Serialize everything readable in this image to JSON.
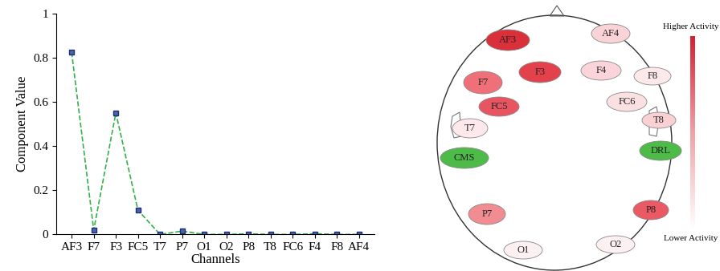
{
  "chart_data": {
    "type": "line",
    "categories": [
      "AF3",
      "F7",
      "F3",
      "FC5",
      "T7",
      "P7",
      "O1",
      "O2",
      "P8",
      "T8",
      "FC6",
      "F4",
      "F8",
      "AF4"
    ],
    "values": [
      0.825,
      0.02,
      0.55,
      0.11,
      0.0,
      0.015,
      0.0,
      0.0,
      0.003,
      0.0,
      0.0,
      0.003,
      0.0,
      0.0
    ],
    "color": "#33b24a",
    "marker": "square",
    "line_style": "dashed",
    "x_label": "Channels",
    "y_label": "Component Value",
    "ylim": [
      0,
      1
    ],
    "yticks": [
      0,
      0.2,
      0.4,
      0.6,
      0.8,
      1
    ]
  },
  "head_map": {
    "electrodes": [
      {
        "label": "AF3",
        "color": "#d9303a"
      },
      {
        "label": "AF4",
        "color": "#f9d3d6"
      },
      {
        "label": "F7",
        "color": "#ef7078"
      },
      {
        "label": "F3",
        "color": "#e3414c"
      },
      {
        "label": "F4",
        "color": "#fad4d8"
      },
      {
        "label": "F8",
        "color": "#fde8ea"
      },
      {
        "label": "FC5",
        "color": "#e85560"
      },
      {
        "label": "FC6",
        "color": "#fbe0e2"
      },
      {
        "label": "T7",
        "color": "#fde9eb"
      },
      {
        "label": "T8",
        "color": "#f9d0d4"
      },
      {
        "label": "CMS",
        "color": "#4cbb47"
      },
      {
        "label": "DRL",
        "color": "#4cbb47"
      },
      {
        "label": "P7",
        "color": "#f28c93"
      },
      {
        "label": "P8",
        "color": "#eb5a64"
      },
      {
        "label": "O1",
        "color": "#fdf0f1"
      },
      {
        "label": "O2",
        "color": "#fdf0f1"
      }
    ],
    "scale_high_label": "Higher Activity",
    "scale_low_label": "Lower Activity"
  }
}
